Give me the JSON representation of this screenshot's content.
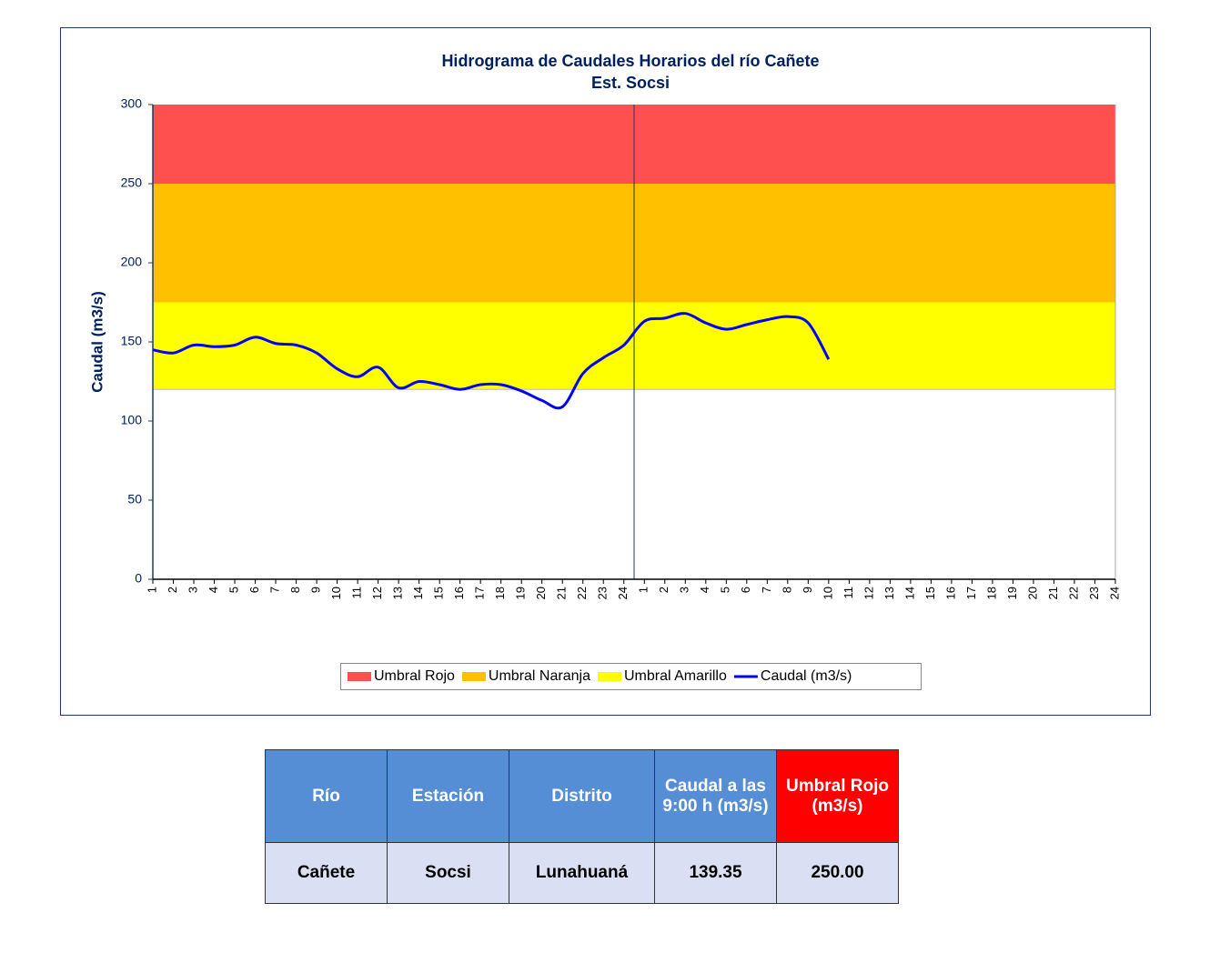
{
  "chart_data": {
    "type": "line",
    "title": "Hidrograma  de Caudales Horarios  del río Cañete",
    "subtitle": "Est. Socsi",
    "y_label": "Caudal (m3/s)",
    "categories": [
      "1",
      "2",
      "3",
      "4",
      "5",
      "6",
      "7",
      "8",
      "9",
      "10",
      "11",
      "12",
      "13",
      "14",
      "15",
      "16",
      "17",
      "18",
      "19",
      "20",
      "21",
      "22",
      "23",
      "24",
      "1",
      "2",
      "3",
      "4",
      "5",
      "6",
      "7",
      "8",
      "9",
      "10",
      "11",
      "12",
      "13",
      "14",
      "15",
      "16",
      "17",
      "18",
      "19",
      "20",
      "21",
      "22",
      "23",
      "24"
    ],
    "bands": [
      {
        "name": "Umbral Rojo",
        "color": "#ff5050",
        "from": 250,
        "to": 300
      },
      {
        "name": "Umbral Naranja",
        "color": "#ffc000",
        "from": 175,
        "to": 250
      },
      {
        "name": "Umbral Amarillo",
        "color": "#ffff00",
        "from": 120,
        "to": 175
      }
    ],
    "series": [
      {
        "name": "Caudal (m3/s)",
        "color": "#0000ff",
        "values": [
          145,
          143,
          148,
          147,
          148,
          153,
          149,
          148,
          143,
          133,
          128,
          134,
          121,
          125,
          123,
          120,
          123,
          123,
          119,
          113,
          109,
          130,
          140,
          148,
          163,
          165,
          168,
          162,
          158,
          161,
          164,
          166,
          162,
          139,
          null,
          null,
          null,
          null,
          null,
          null,
          null,
          null,
          null,
          null,
          null,
          null,
          null,
          null
        ]
      }
    ],
    "ylim": [
      0,
      300
    ],
    "yticks": [
      0,
      50,
      100,
      150,
      200,
      250,
      300
    ]
  },
  "table": {
    "header": [
      "Río",
      "Estación",
      "Distrito",
      "Caudal a las 9:00 h (m3/s)",
      "Umbral Rojo (m3/s)"
    ],
    "rows": [
      [
        "Cañete",
        "Socsi",
        "Lunahuaná",
        "139.35",
        "250.00"
      ]
    ]
  }
}
